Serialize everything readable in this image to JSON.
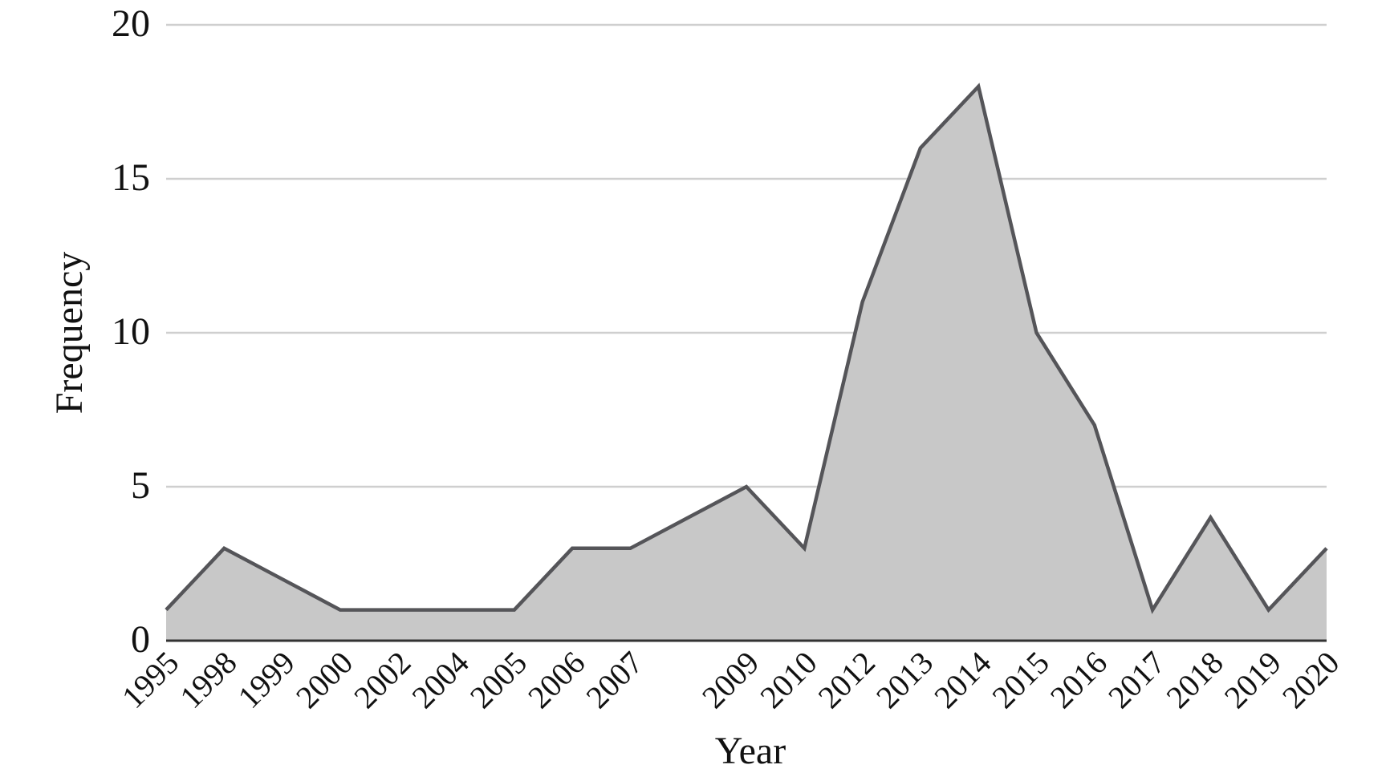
{
  "chart_data": {
    "type": "area",
    "x_label": "Year",
    "y_label": "Frequency",
    "categories": [
      "1995",
      "1998",
      "1999",
      "2000",
      "2002",
      "2004",
      "2005",
      "2006",
      "2007",
      null,
      "2009",
      "2010",
      "2012",
      "2013",
      "2014",
      "2015",
      "2016",
      "2017",
      "2018",
      "2019",
      "2020"
    ],
    "values": [
      1,
      3,
      2,
      1,
      1,
      1,
      1,
      3,
      3,
      4,
      5,
      3,
      11,
      16,
      18,
      10,
      7,
      1,
      4,
      1,
      3
    ],
    "color": "#c8c8c8",
    "line_color": "#555559",
    "ylim": [
      0,
      20
    ],
    "yticks": [
      0,
      5,
      10,
      15,
      20
    ],
    "grid": true
  }
}
